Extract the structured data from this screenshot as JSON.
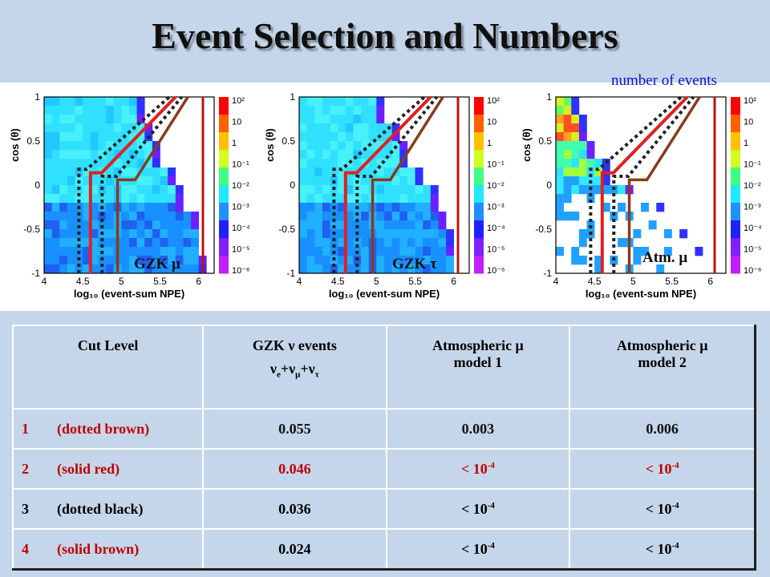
{
  "title": "Event Selection and Numbers",
  "annotation": "number of events",
  "chart_data": [
    {
      "type": "heatmap",
      "panel_label": "GZK μ",
      "xlabel": "log₁₀ (event-sum NPE)",
      "ylabel": "cos (θ)",
      "xlim": [
        4,
        6.2
      ],
      "ylim": [
        -1,
        1
      ],
      "xticks": [
        "4",
        "4.5",
        "5",
        "5.5",
        "6"
      ],
      "yticks": [
        "-1",
        "-0.5",
        "0",
        "0.5",
        "1"
      ],
      "colorbar_ticks": [
        "10⁻⁶",
        "10⁻⁵",
        "10⁻⁴",
        "10⁻³",
        "10⁻²",
        "10⁻¹",
        "1",
        "10",
        "10²"
      ],
      "populated_until_x": [
        5.25,
        5.35,
        5.5,
        5.65,
        5.8,
        5.95,
        6.05,
        6.1
      ]
    },
    {
      "type": "heatmap",
      "panel_label": "GZK τ",
      "xlabel": "log₁₀ (event-sum NPE)",
      "ylabel": "cos (θ)",
      "xlim": [
        4,
        6.2
      ],
      "ylim": [
        -1,
        1
      ],
      "xticks": [
        "4",
        "4.5",
        "5",
        "5.5",
        "6"
      ],
      "yticks": [
        "-1",
        "-0.5",
        "0",
        "0.5",
        "1"
      ],
      "colorbar_ticks": [
        "10⁻⁶",
        "10⁻⁵",
        "10⁻⁴",
        "10⁻³",
        "10⁻²",
        "10⁻¹",
        "1",
        "10",
        "10²"
      ],
      "populated_until_x": [
        5.1,
        5.25,
        5.4,
        5.55,
        5.75,
        5.9,
        6.0,
        6.05
      ]
    },
    {
      "type": "heatmap",
      "panel_label": "Atm. μ",
      "xlabel": "log₁₀ (event-sum NPE)",
      "ylabel": "cos (θ)",
      "xlim": [
        4,
        6.2
      ],
      "ylim": [
        -1,
        1
      ],
      "xticks": [
        "4",
        "4.5",
        "5",
        "5.5",
        "6"
      ],
      "yticks": [
        "-1",
        "-0.5",
        "0",
        "0.5",
        "1"
      ],
      "colorbar_ticks": [
        "10⁻⁶",
        "10⁻⁵",
        "10⁻⁴",
        "10⁻³",
        "10⁻²",
        "10⁻¹",
        "1",
        "10",
        "10²"
      ],
      "populated_until_x": [
        4.3,
        4.4,
        4.5,
        4.7,
        5.0,
        5.4,
        5.7,
        5.9
      ]
    }
  ],
  "cut_lines": [
    {
      "style": "dotted",
      "color": "#222222",
      "x": 4.45
    },
    {
      "style": "solid",
      "color": "#e02020",
      "x": 4.6,
      "knee_cos": 0.1,
      "top_x": 5.75
    },
    {
      "style": "dotted",
      "color": "#222222",
      "x": 4.75
    },
    {
      "style": "solid",
      "color": "#8b3a1a",
      "x": 4.95
    }
  ],
  "table": {
    "headers": {
      "cut_level": "Cut Level",
      "gzk_line1": "GZK ν events",
      "gzk_nu": "ν",
      "gzk_sub_e": "e",
      "gzk_plus": "+",
      "gzk_sub_mu": "μ",
      "gzk_sub_tau": "τ",
      "atm1_line1": "Atmospheric μ",
      "atm1_line2": "model 1",
      "atm2_line1": "Atmospheric μ",
      "atm2_line2": "model 2"
    },
    "less_than": "< 10",
    "exponent": "-4",
    "rows": [
      {
        "num": "1",
        "label": "(dotted brown)",
        "gzk": "0.055",
        "atm1": "0.003",
        "atm2": "0.006"
      },
      {
        "num": "2",
        "label": "(solid red)",
        "gzk": "0.046"
      },
      {
        "num": "3",
        "label": "(dotted black)",
        "gzk": "0.036"
      },
      {
        "num": "4",
        "label": "(solid brown)",
        "gzk": "0.024"
      }
    ]
  }
}
